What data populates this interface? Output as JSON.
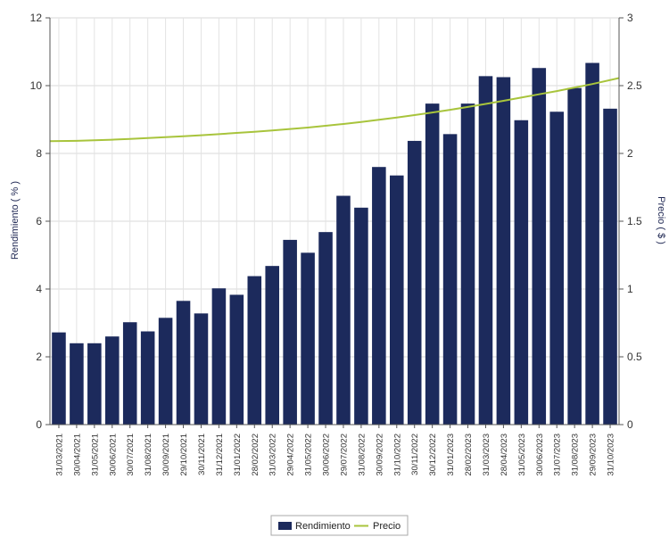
{
  "chart_data": {
    "type": "bar",
    "title": "",
    "xlabel": "",
    "ylabel": "Rendimiento ( % )",
    "y2label": "Precio ( $ )",
    "ylim": [
      0,
      12
    ],
    "y2lim": [
      0,
      3
    ],
    "yticks": [
      "0",
      "2",
      "4",
      "6",
      "8",
      "10",
      "12"
    ],
    "y2ticks": [
      "0",
      "0.5",
      "1",
      "1.5",
      "2",
      "2.5",
      "3"
    ],
    "grid": true,
    "legend_position": "bottom",
    "categories": [
      "31/03/2021",
      "30/04/2021",
      "31/05/2021",
      "30/06/2021",
      "30/07/2021",
      "31/08/2021",
      "30/09/2021",
      "29/10/2021",
      "30/11/2021",
      "31/12/2021",
      "31/01/2022",
      "28/02/2022",
      "31/03/2022",
      "29/04/2022",
      "31/05/2022",
      "30/06/2022",
      "29/07/2022",
      "31/08/2022",
      "30/09/2022",
      "31/10/2022",
      "30/11/2022",
      "30/12/2022",
      "31/01/2023",
      "28/02/2023",
      "31/03/2023",
      "28/04/2023",
      "31/05/2023",
      "30/06/2023",
      "31/07/2023",
      "31/08/2023",
      "29/09/2023",
      "31/10/2023"
    ],
    "series": [
      {
        "name": "Rendimiento",
        "type": "bar",
        "axis": "left",
        "color": "#1c2a5c",
        "values": [
          2.72,
          2.4,
          2.4,
          2.6,
          3.02,
          2.75,
          3.15,
          3.65,
          3.28,
          4.02,
          3.83,
          4.38,
          4.68,
          5.45,
          5.07,
          5.68,
          6.75,
          6.4,
          7.6,
          7.35,
          8.37,
          9.47,
          8.57,
          9.47,
          10.28,
          10.25,
          8.98,
          10.52,
          9.23,
          9.93,
          10.67,
          9.32
        ]
      },
      {
        "name": "Precio",
        "type": "line",
        "axis": "right",
        "color": "#a8c43c",
        "values": [
          2.09,
          2.093,
          2.097,
          2.101,
          2.107,
          2.113,
          2.12,
          2.127,
          2.134,
          2.142,
          2.151,
          2.16,
          2.169,
          2.18,
          2.191,
          2.204,
          2.217,
          2.232,
          2.248,
          2.265,
          2.283,
          2.302,
          2.322,
          2.343,
          2.365,
          2.388,
          2.412,
          2.436,
          2.46,
          2.486,
          2.512,
          2.556
        ]
      }
    ]
  }
}
